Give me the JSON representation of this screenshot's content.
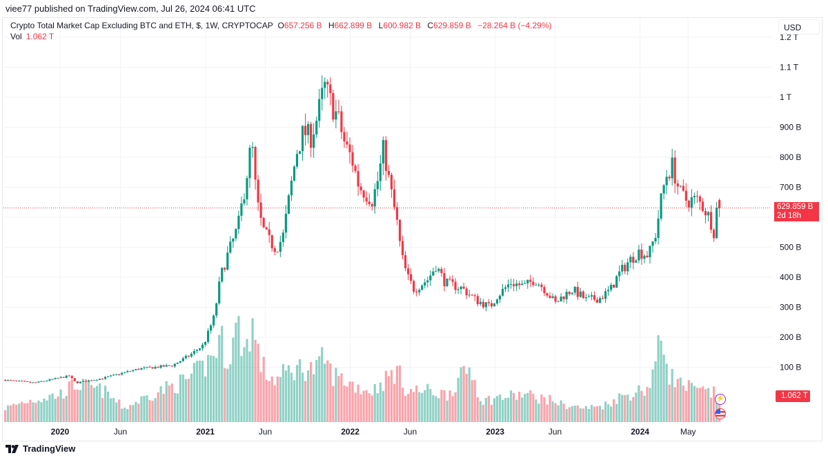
{
  "published": "viee77 published on TradingView.com, Jul 26, 2024 06:41 UTC",
  "legend": {
    "symbol": "Crypto Total Market Cap Excluding BTC and ETH, $, 1W, CRYPTOCAP",
    "o_label": "O",
    "o": "657.256 B",
    "h_label": "H",
    "h": "662.899 B",
    "l_label": "L",
    "l": "600.982 B",
    "c_label": "C",
    "c": "629.859 B",
    "change": "−28.264 B (−4.29%)",
    "vol_label": "Vol",
    "vol": "1.062 T"
  },
  "currency": "USD",
  "price_tag": {
    "price": "629.859 B",
    "countdown": "2d 18h"
  },
  "volume_tag": "1.062 T",
  "footer": {
    "brand": "TradingView"
  },
  "icons": [
    "lightning-event-icon",
    "us-flag-economic-event-icon",
    "tradingview-logo-icon"
  ],
  "colors": {
    "up": "#089981",
    "down": "#f23645"
  },
  "chart_data": {
    "type": "candlestick",
    "interval": "1W",
    "unit": "B",
    "y_ticks": [
      {
        "value": 100,
        "label": "100 B"
      },
      {
        "value": 200,
        "label": "200 B"
      },
      {
        "value": 300,
        "label": "300 B"
      },
      {
        "value": 400,
        "label": "400 B"
      },
      {
        "value": 500,
        "label": "500 B"
      },
      {
        "value": 700,
        "label": "700 B"
      },
      {
        "value": 800,
        "label": "800 B"
      },
      {
        "value": 900,
        "label": "900 B"
      },
      {
        "value": 1000,
        "label": "1 T"
      },
      {
        "value": 1100,
        "label": "1.1 T"
      },
      {
        "value": 1200,
        "label": "1.2 T"
      }
    ],
    "x_ticks": [
      {
        "date": "2020-01-01",
        "label": "2020"
      },
      {
        "date": "2020-06-01",
        "label": "Jun"
      },
      {
        "date": "2021-01-01",
        "label": "2021"
      },
      {
        "date": "2021-06-01",
        "label": "Jun"
      },
      {
        "date": "2022-01-01",
        "label": "2022"
      },
      {
        "date": "2022-06-01",
        "label": "Jun"
      },
      {
        "date": "2023-01-01",
        "label": "2023"
      },
      {
        "date": "2023-06-01",
        "label": "Jun"
      },
      {
        "date": "2024-01-01",
        "label": "2024"
      },
      {
        "date": "2024-05-01",
        "label": "May"
      }
    ],
    "last_candle": {
      "open": 657.256,
      "high": 662.899,
      "low": 600.982,
      "close": 629.859,
      "volume_T": 1.062
    },
    "close_path": [
      [
        "2019-08-16",
        57
      ],
      [
        "2019-10-29",
        48
      ],
      [
        "2020-01-24",
        71
      ],
      [
        "2020-02-10",
        48
      ],
      [
        "2020-04-20",
        64
      ],
      [
        "2020-07-15",
        94
      ],
      [
        "2020-10-10",
        106
      ],
      [
        "2020-11-23",
        140
      ],
      [
        "2020-12-28",
        175
      ],
      [
        "2021-01-23",
        267
      ],
      [
        "2021-02-09",
        405
      ],
      [
        "2021-02-26",
        474
      ],
      [
        "2021-03-24",
        566
      ],
      [
        "2021-04-11",
        703
      ],
      [
        "2021-04-28",
        853
      ],
      [
        "2021-05-10",
        657
      ],
      [
        "2021-05-24",
        566
      ],
      [
        "2021-06-11",
        520
      ],
      [
        "2021-06-28",
        497
      ],
      [
        "2021-07-15",
        531
      ],
      [
        "2021-08-02",
        680
      ],
      [
        "2021-08-19",
        818
      ],
      [
        "2021-09-06",
        887
      ],
      [
        "2021-09-23",
        864
      ],
      [
        "2021-10-10",
        933
      ],
      [
        "2021-10-28",
        1037
      ],
      [
        "2021-11-14",
        979
      ],
      [
        "2021-12-01",
        933
      ],
      [
        "2021-12-19",
        841
      ],
      [
        "2022-01-05",
        795
      ],
      [
        "2022-01-23",
        703
      ],
      [
        "2022-02-09",
        680
      ],
      [
        "2022-02-26",
        657
      ],
      [
        "2022-03-12",
        726
      ],
      [
        "2022-03-26",
        830
      ],
      [
        "2022-04-11",
        703
      ],
      [
        "2022-04-28",
        589
      ],
      [
        "2022-05-10",
        474
      ],
      [
        "2022-05-24",
        405
      ],
      [
        "2022-06-11",
        359
      ],
      [
        "2022-07-16",
        393
      ],
      [
        "2022-08-05",
        439
      ],
      [
        "2022-08-28",
        382
      ],
      [
        "2022-10-10",
        363
      ],
      [
        "2022-11-14",
        324
      ],
      [
        "2022-12-19",
        301
      ],
      [
        "2023-01-05",
        336
      ],
      [
        "2023-02-09",
        382
      ],
      [
        "2023-03-16",
        370
      ],
      [
        "2023-04-11",
        393
      ],
      [
        "2023-05-07",
        359
      ],
      [
        "2023-06-02",
        313
      ],
      [
        "2023-06-19",
        336
      ],
      [
        "2023-07-15",
        359
      ],
      [
        "2023-08-19",
        324
      ],
      [
        "2023-09-23",
        331
      ],
      [
        "2023-10-19",
        359
      ],
      [
        "2023-11-06",
        405
      ],
      [
        "2023-12-02",
        451
      ],
      [
        "2023-12-28",
        485
      ],
      [
        "2024-01-23",
        474
      ],
      [
        "2024-02-09",
        543
      ],
      [
        "2024-02-23",
        657
      ],
      [
        "2024-03-06",
        738
      ],
      [
        "2024-03-23",
        772
      ],
      [
        "2024-04-10",
        680
      ],
      [
        "2024-04-27",
        657
      ],
      [
        "2024-05-23",
        657
      ],
      [
        "2024-06-09",
        635
      ],
      [
        "2024-06-27",
        589
      ],
      [
        "2024-07-05",
        554
      ],
      [
        "2024-07-15",
        657
      ],
      [
        "2024-07-22",
        630
      ]
    ],
    "volume_path_T": [
      [
        "2019-08-16",
        0.53
      ],
      [
        "2019-10-07",
        0.8
      ],
      [
        "2020-01-01",
        1.06
      ],
      [
        "2020-02-10",
        1.46
      ],
      [
        "2020-04-20",
        1.19
      ],
      [
        "2020-06-11",
        0.53
      ],
      [
        "2020-08-17",
        1.06
      ],
      [
        "2020-11-14",
        1.6
      ],
      [
        "2020-12-28",
        2.1
      ],
      [
        "2021-01-23",
        2.65
      ],
      [
        "2021-02-09",
        3.2
      ],
      [
        "2021-02-26",
        2.4
      ],
      [
        "2021-03-24",
        3.7
      ],
      [
        "2021-04-11",
        2.65
      ],
      [
        "2021-04-28",
        3.85
      ],
      [
        "2021-05-17",
        2.4
      ],
      [
        "2021-06-03",
        1.86
      ],
      [
        "2021-06-28",
        1.6
      ],
      [
        "2021-08-02",
        2.0
      ],
      [
        "2021-09-06",
        2.1
      ],
      [
        "2021-10-10",
        2.0
      ],
      [
        "2021-10-28",
        2.5
      ],
      [
        "2021-11-14",
        1.86
      ],
      [
        "2021-12-19",
        1.6
      ],
      [
        "2022-01-23",
        1.33
      ],
      [
        "2022-02-26",
        1.2
      ],
      [
        "2022-04-28",
        2.0
      ],
      [
        "2022-05-24",
        1.2
      ],
      [
        "2022-07-16",
        1.2
      ],
      [
        "2022-09-01",
        1.06
      ],
      [
        "2022-10-31",
        2.1
      ],
      [
        "2022-11-28",
        0.8
      ],
      [
        "2023-01-05",
        0.93
      ],
      [
        "2023-03-16",
        1.06
      ],
      [
        "2023-06-02",
        0.8
      ],
      [
        "2023-06-19",
        0.66
      ],
      [
        "2023-08-19",
        0.53
      ],
      [
        "2023-10-05",
        0.66
      ],
      [
        "2023-11-06",
        0.93
      ],
      [
        "2024-01-23",
        1.33
      ],
      [
        "2024-02-26",
        3.3
      ],
      [
        "2024-03-15",
        1.86
      ],
      [
        "2024-04-10",
        1.46
      ],
      [
        "2024-05-23",
        1.2
      ],
      [
        "2024-07-22",
        1.062
      ]
    ]
  }
}
